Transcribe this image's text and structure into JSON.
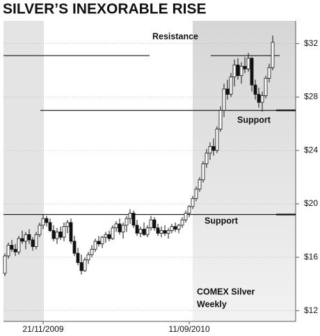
{
  "chart_data": {
    "type": "candlestick",
    "title": "SILVER’S INEXORABLE RISE",
    "categories": [
      null,
      null,
      null,
      null,
      null,
      null,
      null,
      null,
      null,
      null,
      null,
      "21/11/2009",
      null,
      null,
      null,
      null,
      null,
      null,
      null,
      null,
      null,
      null,
      null,
      null,
      null,
      null,
      null,
      null,
      null,
      null,
      null,
      null,
      null,
      null,
      null,
      null,
      null,
      null,
      null,
      null,
      null,
      null,
      null,
      null,
      null,
      null,
      null,
      null,
      null,
      null,
      null,
      null,
      null,
      "11/09/2010",
      null,
      null,
      null,
      null,
      null,
      null,
      null,
      null,
      null,
      null,
      null,
      null,
      null,
      null,
      null,
      null,
      null,
      null,
      null,
      null,
      null,
      null,
      null,
      null
    ],
    "ohlc": [
      [
        14.8,
        16.3,
        14.6,
        16.1
      ],
      [
        16.1,
        17.1,
        15.9,
        16.9
      ],
      [
        16.9,
        17.3,
        16.4,
        16.6
      ],
      [
        16.6,
        17.0,
        16.1,
        16.4
      ],
      [
        16.4,
        17.6,
        16.2,
        17.4
      ],
      [
        17.4,
        18.0,
        17.0,
        17.2
      ],
      [
        17.2,
        17.9,
        16.6,
        17.7
      ],
      [
        17.7,
        18.1,
        17.0,
        17.3
      ],
      [
        17.3,
        17.5,
        16.5,
        16.8
      ],
      [
        16.8,
        17.9,
        16.6,
        17.7
      ],
      [
        17.7,
        18.6,
        17.5,
        18.4
      ],
      [
        18.4,
        19.2,
        18.1,
        18.9
      ],
      [
        18.9,
        19.1,
        18.3,
        18.6
      ],
      [
        18.6,
        18.9,
        17.9,
        18.0
      ],
      [
        18.0,
        18.4,
        17.2,
        17.4
      ],
      [
        17.4,
        18.2,
        17.0,
        17.9
      ],
      [
        17.9,
        18.3,
        17.3,
        17.5
      ],
      [
        17.5,
        18.6,
        17.2,
        18.3
      ],
      [
        18.3,
        18.8,
        17.8,
        18.6
      ],
      [
        18.6,
        18.9,
        17.0,
        17.2
      ],
      [
        17.2,
        17.6,
        16.1,
        16.3
      ],
      [
        16.3,
        16.7,
        15.4,
        15.6
      ],
      [
        15.6,
        16.2,
        14.7,
        15.0
      ],
      [
        15.0,
        16.0,
        14.9,
        15.8
      ],
      [
        15.8,
        16.4,
        15.5,
        16.2
      ],
      [
        16.2,
        16.9,
        16.0,
        16.6
      ],
      [
        16.6,
        17.4,
        16.4,
        17.2
      ],
      [
        17.2,
        17.6,
        16.8,
        17.0
      ],
      [
        17.0,
        17.6,
        16.7,
        17.5
      ],
      [
        17.5,
        17.9,
        17.1,
        17.7
      ],
      [
        17.7,
        18.0,
        17.2,
        17.4
      ],
      [
        17.4,
        18.4,
        17.3,
        18.2
      ],
      [
        18.2,
        18.7,
        17.9,
        18.5
      ],
      [
        18.5,
        18.9,
        17.7,
        17.9
      ],
      [
        17.9,
        18.6,
        17.4,
        18.4
      ],
      [
        18.4,
        19.1,
        17.9,
        18.9
      ],
      [
        18.9,
        19.6,
        18.5,
        19.3
      ],
      [
        19.3,
        19.5,
        18.2,
        18.4
      ],
      [
        18.4,
        18.8,
        17.6,
        17.8
      ],
      [
        17.8,
        18.3,
        17.5,
        18.1
      ],
      [
        18.1,
        18.6,
        17.6,
        17.7
      ],
      [
        17.7,
        18.4,
        17.5,
        18.2
      ],
      [
        18.2,
        19.1,
        18.0,
        18.8
      ],
      [
        18.8,
        19.0,
        18.0,
        18.2
      ],
      [
        18.2,
        18.5,
        17.6,
        17.8
      ],
      [
        17.8,
        18.3,
        17.5,
        18.0
      ],
      [
        18.0,
        18.4,
        17.6,
        17.8
      ],
      [
        17.8,
        18.2,
        17.4,
        18.0
      ],
      [
        18.0,
        18.5,
        17.8,
        18.3
      ],
      [
        18.3,
        18.6,
        17.9,
        18.1
      ],
      [
        18.1,
        18.5,
        17.8,
        18.4
      ],
      [
        18.4,
        19.0,
        18.2,
        18.8
      ],
      [
        18.8,
        19.5,
        18.6,
        19.3
      ],
      [
        19.3,
        19.9,
        19.0,
        19.8
      ],
      [
        19.8,
        20.6,
        19.6,
        20.4
      ],
      [
        20.4,
        21.3,
        20.2,
        21.1
      ],
      [
        21.1,
        22.0,
        20.9,
        21.8
      ],
      [
        21.8,
        23.2,
        21.6,
        23.0
      ],
      [
        23.0,
        24.1,
        22.7,
        23.8
      ],
      [
        23.8,
        24.6,
        23.3,
        24.3
      ],
      [
        24.3,
        24.9,
        23.6,
        24.0
      ],
      [
        24.0,
        25.8,
        23.8,
        25.6
      ],
      [
        25.6,
        27.3,
        25.4,
        27.0
      ],
      [
        27.0,
        29.0,
        26.5,
        28.6
      ],
      [
        28.6,
        29.3,
        27.8,
        28.2
      ],
      [
        28.2,
        29.8,
        28.0,
        29.5
      ],
      [
        29.5,
        30.8,
        28.8,
        30.4
      ],
      [
        30.4,
        30.9,
        29.3,
        29.6
      ],
      [
        29.6,
        30.6,
        29.0,
        30.3
      ],
      [
        30.3,
        31.0,
        29.8,
        30.1
      ],
      [
        30.1,
        31.3,
        29.9,
        30.9
      ],
      [
        30.9,
        31.0,
        28.4,
        28.9
      ],
      [
        28.9,
        29.3,
        27.8,
        28.2
      ],
      [
        28.2,
        28.7,
        27.2,
        27.6
      ],
      [
        27.6,
        28.4,
        26.9,
        28.1
      ],
      [
        28.1,
        29.6,
        27.9,
        29.4
      ],
      [
        29.4,
        30.5,
        29.1,
        30.2
      ],
      [
        30.2,
        32.6,
        30.0,
        32.1
      ]
    ],
    "up_color": "#ffffff",
    "down_color": "#111111",
    "ylim": [
      11.2,
      33.7
    ],
    "yticks": [
      {
        "value": 12,
        "label": "$12"
      },
      {
        "value": 16,
        "label": "$16"
      },
      {
        "value": 20,
        "label": "$20"
      },
      {
        "value": 24,
        "label": "$24"
      },
      {
        "value": 28,
        "label": "$28"
      },
      {
        "value": 32,
        "label": "$32"
      }
    ],
    "grid": true,
    "levels": [
      {
        "value": 31.1,
        "label": "Resistance"
      },
      {
        "value": 27.0,
        "label": "Support"
      },
      {
        "value": 19.2,
        "label": "Support"
      }
    ],
    "note": [
      "COMEX Silver",
      "Weekly"
    ]
  }
}
